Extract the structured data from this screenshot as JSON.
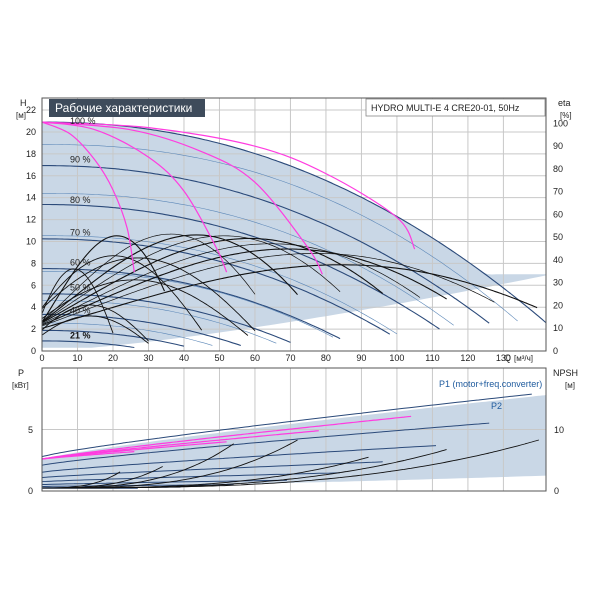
{
  "chart_data": [
    {
      "type": "line",
      "title": "Рабочие характеристики",
      "model": "HYDRO MULTI-E 4 CRE20-01, 50Hz",
      "left_axis": {
        "name": "H",
        "unit": "[м]",
        "range": [
          0,
          22
        ],
        "ticks": [
          "0",
          "2",
          "4",
          "6",
          "8",
          "10",
          "12",
          "14",
          "16",
          "18",
          "20",
          "22"
        ]
      },
      "right_axis": {
        "name": "eta",
        "unit": "[%]",
        "range": [
          0,
          110
        ],
        "ticks": [
          "0",
          "10",
          "20",
          "30",
          "40",
          "50",
          "60",
          "70",
          "80",
          "90",
          "100"
        ]
      },
      "x_axis": {
        "name": "Q",
        "unit": "[м³/ч]",
        "range": [
          0,
          142
        ],
        "ticks": [
          "0",
          "10",
          "20",
          "30",
          "40",
          "50",
          "60",
          "70",
          "80",
          "90",
          "100",
          "110",
          "120",
          "130"
        ]
      },
      "grid": true,
      "speed_labels": [
        {
          "text": "100 %",
          "h": 21
        },
        {
          "text": "90 %",
          "h": 17.5
        },
        {
          "text": "80 %",
          "h": 13.8
        },
        {
          "text": "70 %",
          "h": 10.8
        },
        {
          "text": "60 %",
          "h": 8.1
        },
        {
          "text": "50 %",
          "h": 5.8
        },
        {
          "text": "40 %",
          "h": 3.7
        },
        {
          "text": "21 %",
          "h": 1.4
        }
      ],
      "series": [
        {
          "pumps": 4,
          "color": "#ff3ce0",
          "points": [
            [
              0,
              20.9
            ],
            [
              30,
              20.4
            ],
            [
              60,
              18.7
            ],
            [
              80,
              16.2
            ],
            [
              100,
              12.2
            ],
            [
              105,
              9.3
            ]
          ]
        },
        {
          "pumps": 3,
          "color": "#ff3ce0",
          "points": [
            [
              0,
              20.9
            ],
            [
              25,
              20.2
            ],
            [
              45,
              18.2
            ],
            [
              60,
              15.4
            ],
            [
              75,
              9.4
            ],
            [
              79,
              7.0
            ]
          ]
        },
        {
          "pumps": 2,
          "color": "#ff3ce0",
          "points": [
            [
              0,
              20.9
            ],
            [
              15,
              20.2
            ],
            [
              30,
              17.7
            ],
            [
              40,
              14.6
            ],
            [
              49,
              9.5
            ],
            [
              52,
              7.2
            ]
          ]
        },
        {
          "pumps": 1,
          "color": "#ff3ce0",
          "points": [
            [
              0,
              20.9
            ],
            [
              8,
              19.8
            ],
            [
              15,
              17.4
            ],
            [
              20,
              14.7
            ],
            [
              24,
              11.2
            ],
            [
              26,
              7.2
            ]
          ]
        }
      ],
      "envelope_max_flow": 142
    },
    {
      "type": "line",
      "left_axis": {
        "name": "P",
        "unit": "[кВт]",
        "ticks": [
          "0",
          "5"
        ]
      },
      "right_axis": {
        "name": "NPSH",
        "unit": "[м]",
        "ticks": [
          "0",
          "10"
        ]
      },
      "series_labels": [
        "P1 (motor+freq.converter)",
        "P2"
      ],
      "max_power": 7.8
    }
  ]
}
